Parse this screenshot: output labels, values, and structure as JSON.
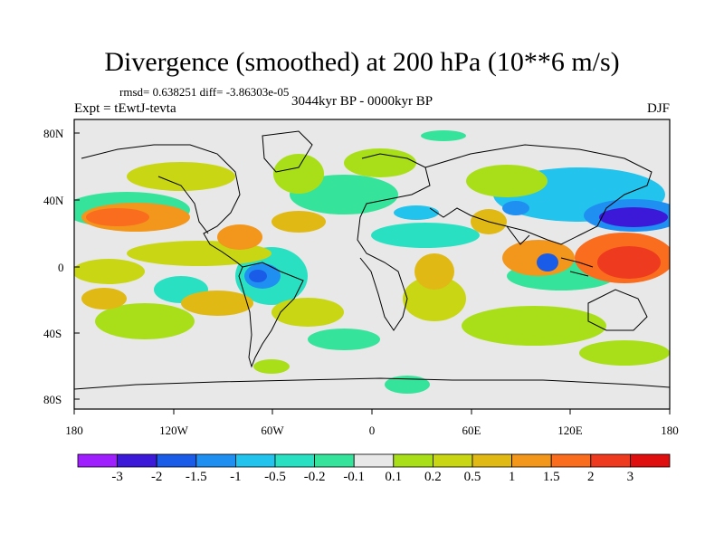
{
  "title": "Divergence (smoothed) at 200 hPa (10**6 m/s)",
  "stats": "rmsd= 0.638251 diff= -3.86303e-05",
  "experiment": "Expt = tEwtJ-tevta",
  "period": "3044kyr BP - 0000kyr BP",
  "season": "DJF",
  "lat_ticks": [
    "80N",
    "40N",
    "0",
    "40S",
    "80S"
  ],
  "lon_ticks": [
    "180",
    "120W",
    "60W",
    "0",
    "60E",
    "120E",
    "180"
  ],
  "colorbar": {
    "labels": [
      "-3",
      "-2",
      "-1.5",
      "-1",
      "-0.5",
      "-0.2",
      "-0.1",
      "0.1",
      "0.2",
      "0.5",
      "1",
      "1.5",
      "2",
      "3"
    ],
    "colors": [
      "#9f1fff",
      "#3c19d9",
      "#1a5be8",
      "#1f8ff2",
      "#22c3ec",
      "#29e1c2",
      "#36e39a",
      "#e8e8e8",
      "#a9df18",
      "#c8d614",
      "#e0b915",
      "#f3961c",
      "#fa6c1e",
      "#ee3a1e",
      "#e00f0f"
    ]
  }
}
